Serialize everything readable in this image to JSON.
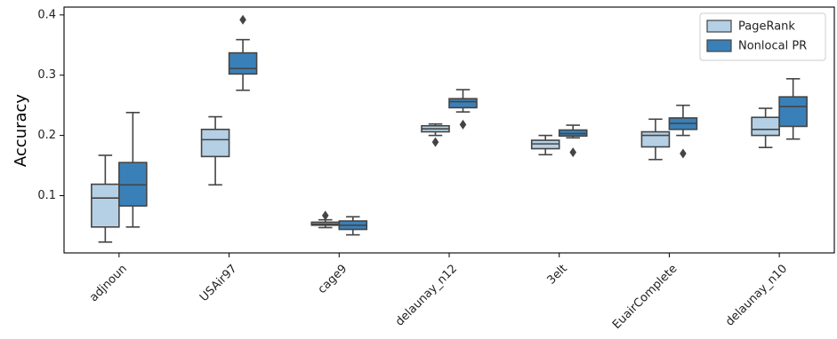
{
  "chart_data": {
    "type": "box",
    "title": "",
    "xlabel": "",
    "ylabel": "Accuracy",
    "ylim": [
      0.005,
      0.413
    ],
    "yticks": [
      0.1,
      0.2,
      0.3,
      0.4
    ],
    "ytick_labels": [
      "0.1",
      "0.2",
      "0.3",
      "0.4"
    ],
    "grid": false,
    "legend_position": "top-right",
    "categories": [
      "adjnoun",
      "USAir97",
      "cage9",
      "delaunay_n12",
      "3elt",
      "EuairComplete",
      "delaunay_n10"
    ],
    "series": [
      {
        "name": "PageRank",
        "color": "#b5d0e5",
        "boxes": [
          {
            "whislo": 0.023,
            "q1": 0.048,
            "med": 0.096,
            "q3": 0.119,
            "whishi": 0.167,
            "fliers": []
          },
          {
            "whislo": 0.118,
            "q1": 0.165,
            "med": 0.193,
            "q3": 0.21,
            "whishi": 0.231,
            "fliers": []
          },
          {
            "whislo": 0.047,
            "q1": 0.051,
            "med": 0.053,
            "q3": 0.056,
            "whishi": 0.06,
            "fliers": [
              0.067
            ]
          },
          {
            "whislo": 0.2,
            "q1": 0.206,
            "med": 0.211,
            "q3": 0.216,
            "whishi": 0.219,
            "fliers": [
              0.189
            ]
          },
          {
            "whislo": 0.168,
            "q1": 0.178,
            "med": 0.186,
            "q3": 0.192,
            "whishi": 0.2,
            "fliers": []
          },
          {
            "whislo": 0.16,
            "q1": 0.181,
            "med": 0.2,
            "q3": 0.206,
            "whishi": 0.227,
            "fliers": []
          },
          {
            "whislo": 0.18,
            "q1": 0.2,
            "med": 0.21,
            "q3": 0.23,
            "whishi": 0.245,
            "fliers": []
          }
        ]
      },
      {
        "name": "Nonlocal PR",
        "color": "#3a80b8",
        "boxes": [
          {
            "whislo": 0.048,
            "q1": 0.083,
            "med": 0.118,
            "q3": 0.155,
            "whishi": 0.238,
            "fliers": []
          },
          {
            "whislo": 0.275,
            "q1": 0.302,
            "med": 0.311,
            "q3": 0.337,
            "whishi": 0.359,
            "fliers": [
              0.392
            ]
          },
          {
            "whislo": 0.035,
            "q1": 0.044,
            "med": 0.051,
            "q3": 0.058,
            "whishi": 0.065,
            "fliers": []
          },
          {
            "whislo": 0.239,
            "q1": 0.246,
            "med": 0.256,
            "q3": 0.261,
            "whishi": 0.276,
            "fliers": [
              0.218
            ]
          },
          {
            "whislo": 0.196,
            "q1": 0.199,
            "med": 0.203,
            "q3": 0.209,
            "whishi": 0.217,
            "fliers": [
              0.172
            ]
          },
          {
            "whislo": 0.2,
            "q1": 0.21,
            "med": 0.22,
            "q3": 0.229,
            "whishi": 0.25,
            "fliers": [
              0.17
            ]
          },
          {
            "whislo": 0.194,
            "q1": 0.215,
            "med": 0.248,
            "q3": 0.264,
            "whishi": 0.294,
            "fliers": []
          }
        ]
      }
    ]
  }
}
